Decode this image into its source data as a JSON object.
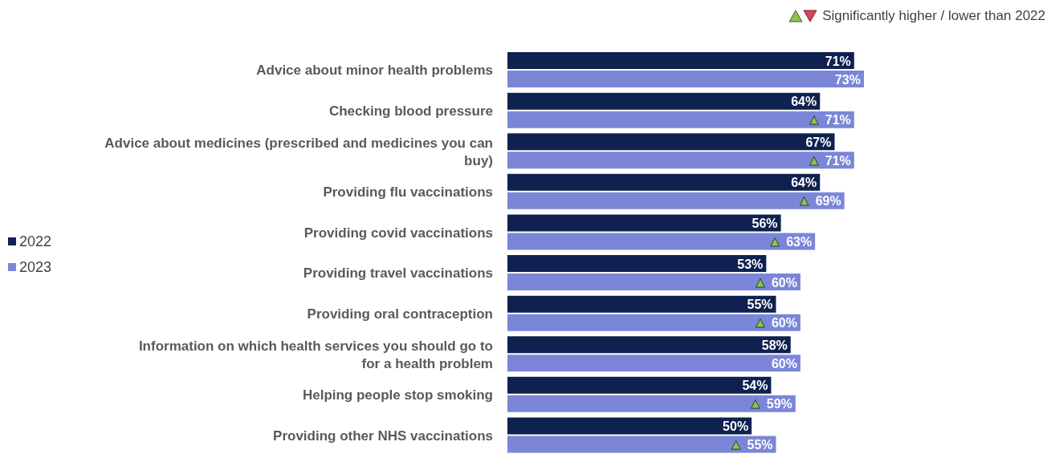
{
  "chart_data": {
    "type": "bar",
    "orientation": "horizontal",
    "categories": [
      "Advice about minor health problems",
      "Checking blood pressure",
      "Advice about medicines (prescribed and medicines you can buy)",
      "Providing flu vaccinations",
      "Providing covid vaccinations",
      "Providing travel vaccinations",
      "Providing oral contraception",
      "Information on which health services you should go to for a health problem",
      "Helping people stop smoking",
      "Providing other NHS vaccinations"
    ],
    "series": [
      {
        "name": "2022",
        "color": "#0f2150",
        "values": [
          71,
          64,
          67,
          64,
          56,
          53,
          55,
          58,
          54,
          50
        ],
        "value_labels": [
          "71%",
          "64%",
          "67%",
          "64%",
          "56%",
          "53%",
          "55%",
          "58%",
          "54%",
          "50%"
        ]
      },
      {
        "name": "2023",
        "color": "#7b86d8",
        "values": [
          73,
          71,
          71,
          69,
          63,
          60,
          60,
          60,
          59,
          55
        ],
        "value_labels": [
          "73%",
          "▲ 71%",
          "▲ 71%",
          "▲ 69%",
          "▲ 63%",
          "▲ 60%",
          "▲ 60%",
          "60%",
          "▲ 59%",
          "▲ 55%"
        ]
      }
    ],
    "tick_labels": false,
    "legend": "left",
    "annotations": [
      "Significantly higher / lower than 2022"
    ]
  }
}
